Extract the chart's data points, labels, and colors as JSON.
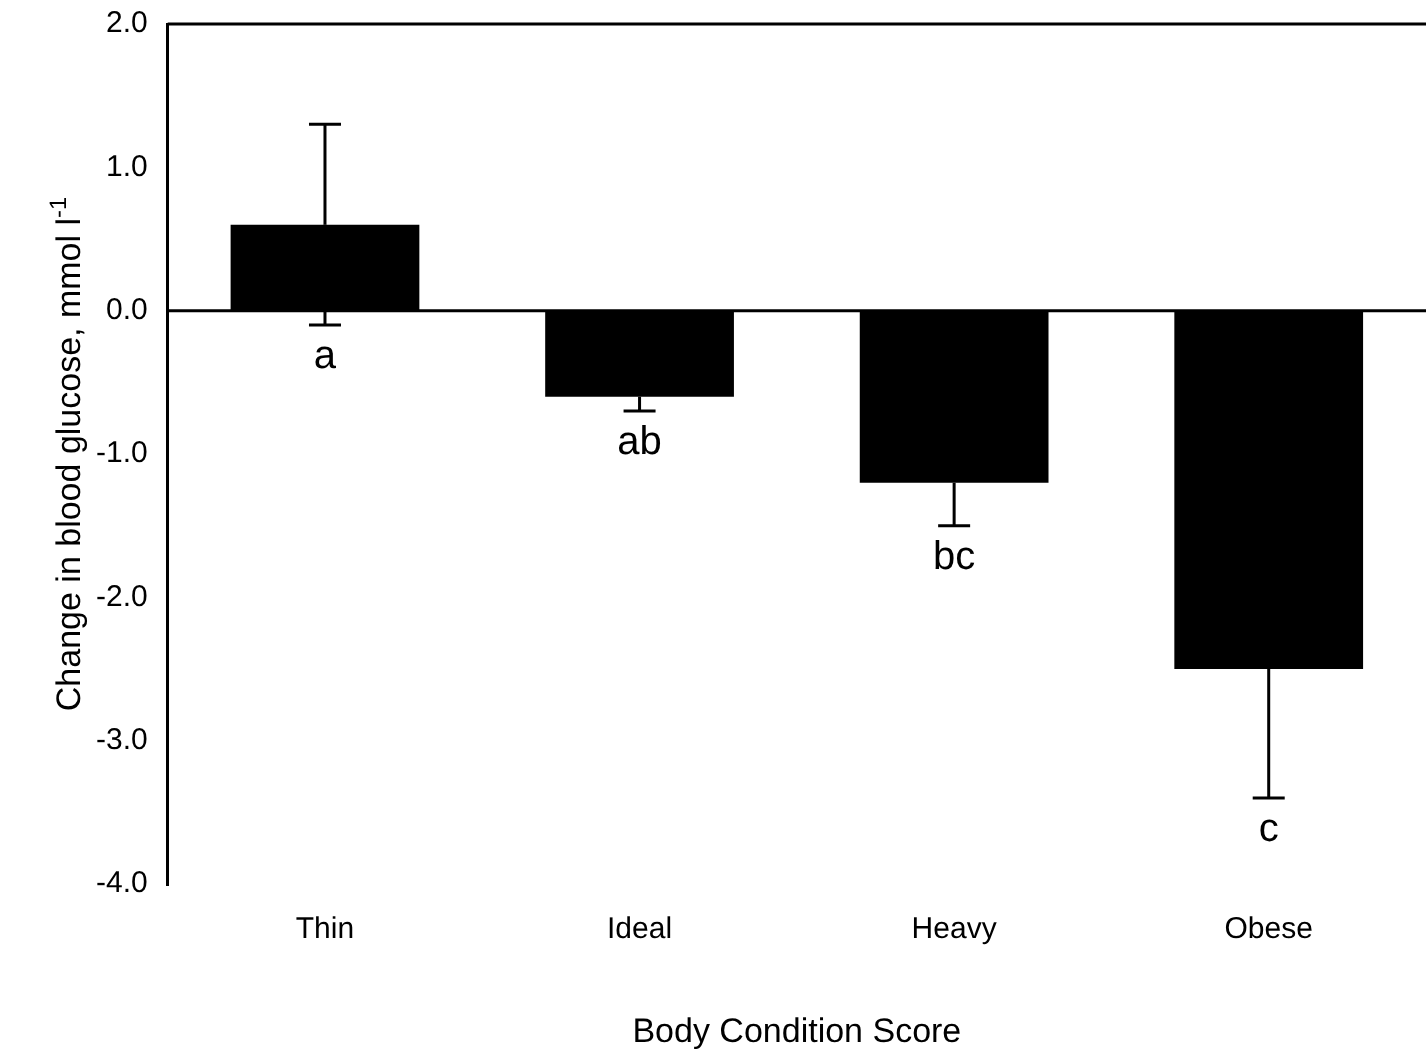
{
  "chart_data": {
    "type": "bar",
    "xlabel": "Body Condition Score",
    "ylabel": "Change in blood glucose, mmol l$^{-1}$",
    "categories": [
      "Thin",
      "Ideal",
      "Heavy",
      "Obese"
    ],
    "values": [
      0.6,
      -0.6,
      -1.2,
      -2.5
    ],
    "color": "#000000",
    "errors": [
      [
        -0.1,
        1.3
      ],
      [
        -0.7,
        -0.6
      ],
      [
        -1.5,
        -1.2
      ],
      [
        -3.4,
        -2.5
      ]
    ],
    "ylim": [
      -4,
      2
    ],
    "yticks": [
      {
        "value": -4,
        "label": "-4.0"
      },
      {
        "value": -3,
        "label": "-3.0"
      },
      {
        "value": -2,
        "label": "-2.0"
      },
      {
        "value": -1,
        "label": "-1.0"
      },
      {
        "value": 0,
        "label": "0.0"
      },
      {
        "value": 1,
        "label": "1.0"
      },
      {
        "value": 2,
        "label": "2.0"
      }
    ],
    "ref_lines": [
      {
        "axis": "y",
        "value": 0,
        "label": null
      }
    ],
    "annotations": [
      "a",
      "ab",
      "bc",
      "c"
    ],
    "grid": false,
    "legend": false
  }
}
